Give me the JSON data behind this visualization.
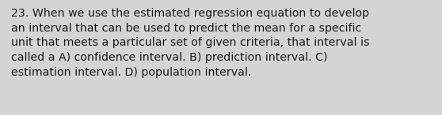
{
  "lines": [
    "23. When we use the estimated regression equation to develop",
    "an interval that can be used to predict the mean for a specific",
    "unit that meets a particular set of given criteria, that interval is",
    "called a A) confidence interval. B) prediction interval. C)",
    "estimation interval. D) population interval."
  ],
  "background_color": "#d4d4d4",
  "text_color": "#1a1a1a",
  "font_size": 10.2,
  "fig_width": 5.58,
  "fig_height": 1.46,
  "dpi": 100
}
